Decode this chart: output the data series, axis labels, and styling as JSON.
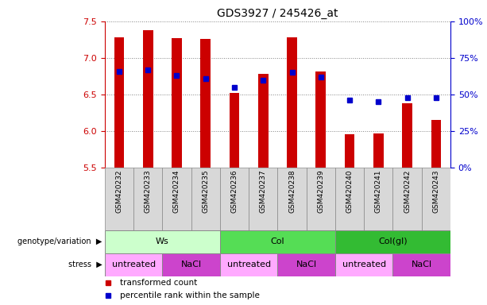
{
  "title": "GDS3927 / 245426_at",
  "samples": [
    "GSM420232",
    "GSM420233",
    "GSM420234",
    "GSM420235",
    "GSM420236",
    "GSM420237",
    "GSM420238",
    "GSM420239",
    "GSM420240",
    "GSM420241",
    "GSM420242",
    "GSM420243"
  ],
  "bar_values": [
    7.28,
    7.38,
    7.27,
    7.26,
    6.52,
    6.78,
    7.28,
    6.82,
    5.96,
    5.97,
    6.38,
    6.15
  ],
  "percentile_values": [
    66,
    67,
    63,
    61,
    55,
    60,
    65,
    62,
    46,
    45,
    48,
    48
  ],
  "bar_bottom": 5.5,
  "ylim_left": [
    5.5,
    7.5
  ],
  "ylim_right": [
    0,
    100
  ],
  "yticks_left": [
    5.5,
    6.0,
    6.5,
    7.0,
    7.5
  ],
  "yticks_right": [
    0,
    25,
    50,
    75,
    100
  ],
  "ytick_labels_right": [
    "0%",
    "25%",
    "50%",
    "75%",
    "100%"
  ],
  "bar_color": "#cc0000",
  "dot_color": "#0000cc",
  "bar_width": 0.35,
  "groups": [
    {
      "label": "Ws",
      "start": 0,
      "end": 4,
      "color": "#ccffcc"
    },
    {
      "label": "Col",
      "start": 4,
      "end": 8,
      "color": "#55dd55"
    },
    {
      "label": "Col(gl)",
      "start": 8,
      "end": 12,
      "color": "#33bb33"
    }
  ],
  "stress_groups": [
    {
      "label": "untreated",
      "start": 0,
      "end": 2,
      "color": "#ffaaff"
    },
    {
      "label": "NaCl",
      "start": 2,
      "end": 4,
      "color": "#cc44cc"
    },
    {
      "label": "untreated",
      "start": 4,
      "end": 6,
      "color": "#ffaaff"
    },
    {
      "label": "NaCl",
      "start": 6,
      "end": 8,
      "color": "#cc44cc"
    },
    {
      "label": "untreated",
      "start": 8,
      "end": 10,
      "color": "#ffaaff"
    },
    {
      "label": "NaCl",
      "start": 10,
      "end": 12,
      "color": "#cc44cc"
    }
  ],
  "legend_items": [
    {
      "label": "transformed count",
      "color": "#cc0000"
    },
    {
      "label": "percentile rank within the sample",
      "color": "#0000cc"
    }
  ],
  "left_label_color": "#cc0000",
  "right_label_color": "#0000cc",
  "sample_bg_color": "#d8d8d8",
  "sample_border_color": "#888888"
}
